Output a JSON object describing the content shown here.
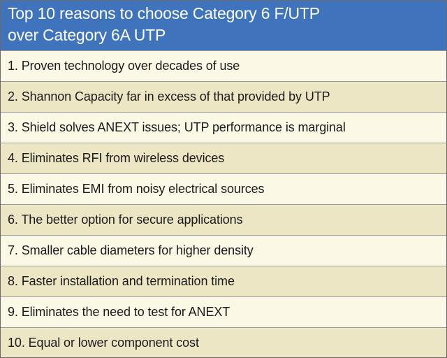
{
  "title": {
    "line1": "Top 10 reasons to choose Category 6 F/UTP",
    "line2": "over Category 6A UTP"
  },
  "reasons": [
    "1. Proven technology over decades of use",
    "2. Shannon Capacity far in excess of that provided by UTP",
    "3. Shield solves ANEXT issues; UTP performance is marginal",
    "4. Eliminates RFI from wireless devices",
    "5. Eliminates EMI from noisy electrical sources",
    "6. The better option for secure applications",
    "7. Smaller cable diameters for higher density",
    "8. Faster installation and termination time",
    "9. Eliminates the need to test for ANEXT",
    "10. Equal or lower component cost"
  ],
  "colors": {
    "header_bg": "#3f74bd",
    "row_light": "#fbf8e6",
    "row_dark": "#ede6c5"
  }
}
